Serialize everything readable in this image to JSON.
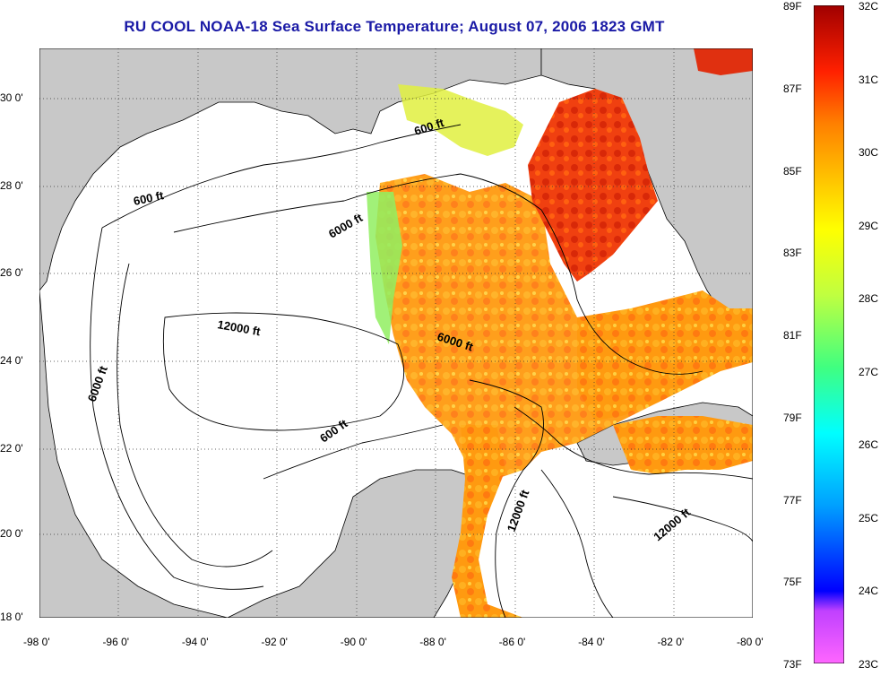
{
  "title": "RU COOL  NOAA-18  Sea Surface Temperature;  August 07, 2006 1823 GMT",
  "map": {
    "lon_range": [
      -98,
      -80
    ],
    "lat_range": [
      18,
      31
    ],
    "x_ticks": [
      "-98 0'",
      "-96 0'",
      "-94 0'",
      "-92 0'",
      "-90 0'",
      "-88 0'",
      "-86 0'",
      "-84 0'",
      "-82 0'",
      "-80 0'"
    ],
    "y_ticks": [
      "30 0'",
      "28 0'",
      "26 0'",
      "24 0'",
      "22 0'",
      "20 0'",
      "18 0'"
    ],
    "grid": "dotted",
    "land_color": "#c8c8c8",
    "contour_labels": [
      "600 ft",
      "600 ft",
      "6000 ft",
      "12000 ft",
      "6000 ft",
      "6000 ft",
      "600 ft",
      "12000 ft",
      "12000 ft"
    ]
  },
  "colorbar": {
    "left_labels": [
      "89F",
      "87F",
      "85F",
      "83F",
      "81F",
      "79F",
      "77F",
      "75F",
      "73F"
    ],
    "right_labels": [
      "32C",
      "31C",
      "30C",
      "29C",
      "28C",
      "27C",
      "26C",
      "25C",
      "24C",
      "23C"
    ],
    "colors": [
      "#ff66ff",
      "#a020f0",
      "#0000ff",
      "#00a0ff",
      "#00ffff",
      "#40ff80",
      "#c0ff40",
      "#ffff00",
      "#ffc000",
      "#ff8000",
      "#ff3000",
      "#ff0000",
      "#a00000"
    ]
  }
}
